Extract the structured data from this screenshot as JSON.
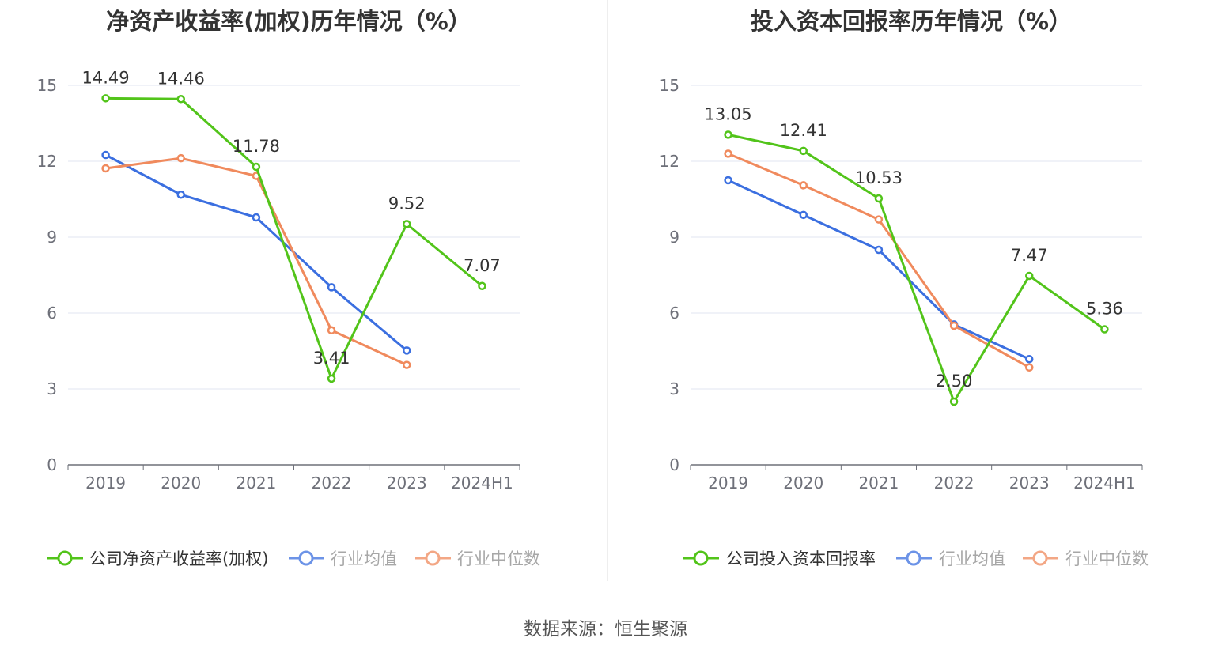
{
  "source_text": "数据来源：恒生聚源",
  "colors": {
    "company": "#52c41a",
    "avg": "#3b6fe0",
    "median": "#f08a5d",
    "grid": "#e0e6f1",
    "axis": "#6e7079"
  },
  "chart_data": [
    {
      "type": "line",
      "title": "净资产收益率(加权)历年情况（%）",
      "categories": [
        "2019",
        "2020",
        "2021",
        "2022",
        "2023",
        "2024H1"
      ],
      "ylim": [
        0,
        15
      ],
      "yticks": [
        "0",
        "3",
        "6",
        "9",
        "12",
        "15"
      ],
      "series": [
        {
          "name": "公司净资产收益率(加权)",
          "key": "company",
          "values": [
            14.49,
            14.46,
            11.78,
            3.41,
            9.52,
            7.07
          ],
          "labels": [
            "14.49",
            "14.46",
            "11.78",
            "3.41",
            "9.52",
            "7.07"
          ]
        },
        {
          "name": "行业均值",
          "key": "avg",
          "values": [
            12.25,
            10.68,
            9.78,
            7.02,
            4.52,
            null
          ]
        },
        {
          "name": "行业中位数",
          "key": "median",
          "values": [
            11.72,
            12.12,
            11.42,
            5.32,
            3.95,
            null
          ]
        }
      ]
    },
    {
      "type": "line",
      "title": "投入资本回报率历年情况（%）",
      "categories": [
        "2019",
        "2020",
        "2021",
        "2022",
        "2023",
        "2024H1"
      ],
      "ylim": [
        0,
        15
      ],
      "yticks": [
        "0",
        "3",
        "6",
        "9",
        "12",
        "15"
      ],
      "series": [
        {
          "name": "公司投入资本回报率",
          "key": "company",
          "values": [
            13.05,
            12.41,
            10.53,
            2.5,
            7.47,
            5.36
          ],
          "labels": [
            "13.05",
            "12.41",
            "10.53",
            "2.50",
            "7.47",
            "5.36"
          ]
        },
        {
          "name": "行业均值",
          "key": "avg",
          "values": [
            11.25,
            9.88,
            8.5,
            5.55,
            4.18,
            null
          ]
        },
        {
          "name": "行业中位数",
          "key": "median",
          "values": [
            12.3,
            11.05,
            9.7,
            5.5,
            3.85,
            null
          ]
        }
      ]
    }
  ]
}
